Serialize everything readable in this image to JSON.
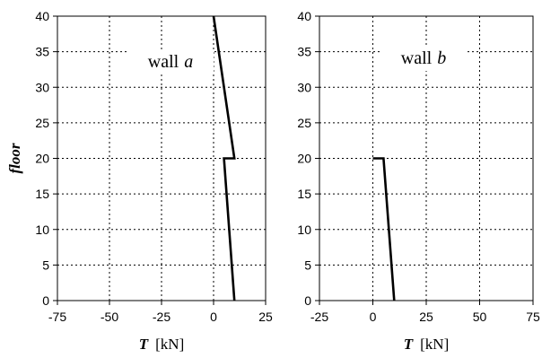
{
  "chart_data": [
    {
      "type": "line",
      "annotation": "wall",
      "annotation_italic": "a",
      "xlabel": "T",
      "xlabel_unit": "[kN]",
      "ylabel": "floor",
      "xlim": [
        -75,
        25
      ],
      "ylim": [
        0,
        40
      ],
      "xticks": [
        -75,
        -50,
        -25,
        0,
        25
      ],
      "yticks": [
        0,
        5,
        10,
        15,
        20,
        25,
        30,
        35,
        40
      ],
      "grid": true,
      "series": [
        {
          "points": [
            [
              10,
              0
            ],
            [
              5,
              20
            ],
            [
              10,
              20
            ],
            [
              0,
              40
            ]
          ]
        }
      ]
    },
    {
      "type": "line",
      "annotation": "wall",
      "annotation_italic": "b",
      "xlabel": "T",
      "xlabel_unit": "[kN]",
      "ylabel": "",
      "xlim": [
        -25,
        75
      ],
      "ylim": [
        0,
        40
      ],
      "xticks": [
        -25,
        0,
        25,
        50,
        75
      ],
      "yticks": [
        0,
        5,
        10,
        15,
        20,
        25,
        30,
        35,
        40
      ],
      "grid": true,
      "series": [
        {
          "points": [
            [
              10,
              0
            ],
            [
              5,
              20
            ],
            [
              0,
              20
            ]
          ]
        }
      ]
    }
  ]
}
